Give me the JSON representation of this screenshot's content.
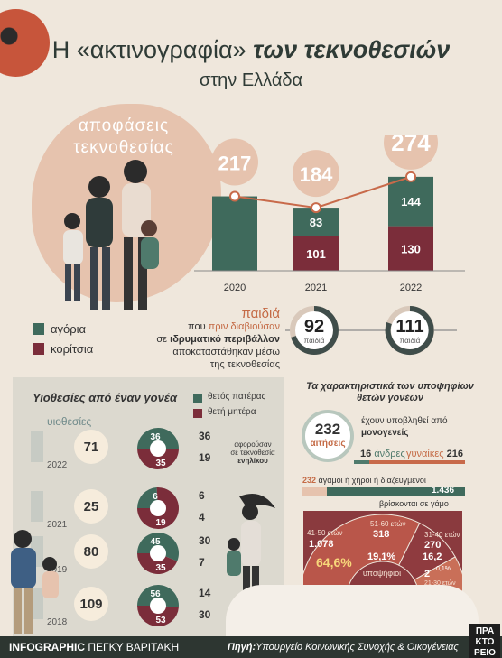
{
  "title": {
    "line1_a": "Η «ακτινογραφία»",
    "line1_b": "των τεκνοθεσιών",
    "line2": "στην Ελλάδα"
  },
  "decisions": {
    "label_line1": "αποφάσεις",
    "label_line2": "τεκνοθεσίας",
    "legend_boys": "αγόρια",
    "legend_girls": "κορίτσια"
  },
  "colors": {
    "teal": "#3f6a5c",
    "wine": "#7b2d3a",
    "orange": "#c86a4a",
    "peach": "#e6c3ae",
    "bg": "#efe7dc"
  },
  "institution": {
    "line1": "παιδιά",
    "line2_a": "που",
    "line2_b": "πριν διαβιούσαν",
    "line3_a": "σε",
    "line3_b": "ιδρυματικό περιβάλλον",
    "line4": "αποκαταστάθηκαν μέσω",
    "line5": "της τεκνοθεσίας",
    "ring_label": "παιδιά",
    "v2021": "92",
    "v2022": "111"
  },
  "single": {
    "title": "Υιοθεσίες από έναν γονέα",
    "legend_father": "θετός πατέρας",
    "legend_mother": "θετή μητέρα",
    "header": "υιοθεσίες",
    "adults_note_line1": "αφορούσαν",
    "adults_note_line2": "σε τεκνοθεσία",
    "adults_note_line3": "ενηλίκου",
    "rows": [
      {
        "year": "2022",
        "total": "71",
        "father": "36",
        "mother": "35",
        "right_top": "36",
        "right_bottom": "19"
      },
      {
        "year": "2021",
        "total": "25",
        "father": "6",
        "mother": "19",
        "right_top": "6",
        "right_bottom": "4"
      },
      {
        "year": "2019",
        "total": "80",
        "father": "45",
        "mother": "35",
        "right_top": "30",
        "right_bottom": "7"
      },
      {
        "year": "2018",
        "total": "109",
        "father": "56",
        "mother": "53",
        "right_top": "14",
        "right_bottom": "30"
      }
    ]
  },
  "applicants": {
    "title_line1": "Τα χαρακτηριστικά των υποψηφίων",
    "title_line2": "θετών γονέων",
    "apps": "232",
    "apps_label": "αιτήσεις",
    "single_line1": "έχουν υποβληθεί από",
    "single_line2": "μονογενείς",
    "men": "16",
    "men_label": "άνδρες",
    "women_label": "γυναίκες",
    "women": "216",
    "unmarried_num": "232",
    "unmarried_label": "άγαμοι ή χήροι ή διαζευγμένοι",
    "married_num": "1.436",
    "married_label": "βρίσκονται σε γάμο",
    "candidates_label": "υποψήφιοι",
    "ages": [
      {
        "label": "41-50 ετών",
        "count": "1.078",
        "pct": "64,6%"
      },
      {
        "label": "51-60 ετών",
        "count": "318",
        "pct": "19,1%"
      },
      {
        "label": "31-40 ετών",
        "count": "270",
        "pct": "16,2"
      },
      {
        "label": "21-30 ετών",
        "count": "2",
        "pct": "0,1%"
      }
    ],
    "ages_count_label": "ετών"
  },
  "footer": {
    "left_bold": "INFOGRAPHIC",
    "left": "ΠΕΓΚΥ ΒΑΡΙΤΑΚΗ",
    "right_bold": "Πηγή:",
    "right": "Υπουργείο Κοινωνικής Συνοχής & Οικογένειας",
    "brand_line1": "ΠΡΑ",
    "brand_line2": "ΚΤΟ",
    "brand_line3": "ΡΕΙΟ"
  },
  "chart_data": [
    {
      "type": "bar",
      "title": "αποφάσεις τεκνοθεσίας",
      "categories": [
        "2020",
        "2021",
        "2022"
      ],
      "totals": [
        217,
        184,
        274
      ],
      "series": [
        {
          "name": "αγόρια",
          "values": [
            null,
            83,
            144
          ]
        },
        {
          "name": "κορίτσια",
          "values": [
            null,
            101,
            130
          ]
        }
      ],
      "total_2020_unsplit": 217
    },
    {
      "type": "pie",
      "title": "Υιοθεσίες από έναν γονέα",
      "categories": [
        "2022",
        "2021",
        "2019",
        "2018"
      ],
      "series": [
        {
          "name": "θετός πατέρας",
          "values": [
            36,
            6,
            45,
            56
          ]
        },
        {
          "name": "θετή μητέρα",
          "values": [
            35,
            19,
            35,
            53
          ]
        }
      ]
    },
    {
      "type": "pie",
      "title": "υποψήφιοι",
      "categories": [
        "21-30 ετών",
        "31-40 ετών",
        "41-50 ετών",
        "51-60 ετών"
      ],
      "values": [
        2,
        270,
        1078,
        318
      ]
    }
  ]
}
